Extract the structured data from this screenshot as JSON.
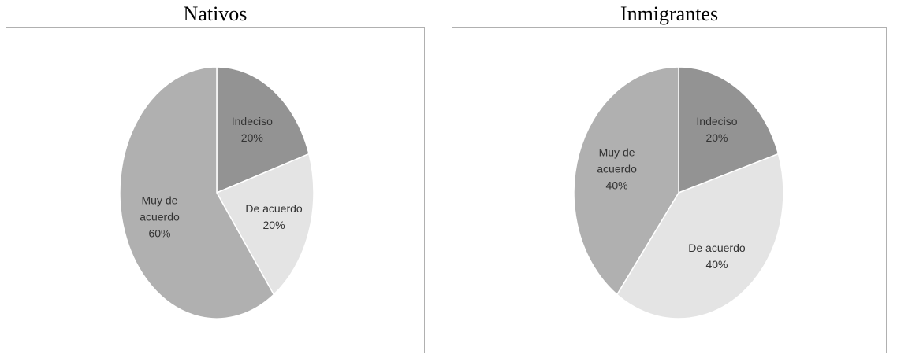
{
  "chart_data": [
    {
      "type": "pie",
      "title": "Nativos",
      "slices": [
        {
          "label": "Indeciso",
          "value": 20,
          "pct": "20%",
          "color": "#939393",
          "lines": [
            "Indeciso",
            "20%"
          ]
        },
        {
          "label": "De acuerdo",
          "value": 20,
          "pct": "20%",
          "color": "#e4e4e4",
          "lines": [
            "De acuerdo",
            "20%"
          ]
        },
        {
          "label": "Muy de acuerdo",
          "value": 60,
          "pct": "60%",
          "color": "#b0b0b0",
          "lines": [
            "Muy de",
            "acuerdo",
            "60%"
          ]
        }
      ]
    },
    {
      "type": "pie",
      "title": "Inmigrantes",
      "slices": [
        {
          "label": "Indeciso",
          "value": 20,
          "pct": "20%",
          "color": "#939393",
          "lines": [
            "Indeciso",
            "20%"
          ]
        },
        {
          "label": "De acuerdo",
          "value": 40,
          "pct": "40%",
          "color": "#e4e4e4",
          "lines": [
            "De acuerdo",
            "40%"
          ]
        },
        {
          "label": "Muy de acuerdo",
          "value": 40,
          "pct": "40%",
          "color": "#b0b0b0",
          "lines": [
            "Muy de",
            "acuerdo",
            "40%"
          ]
        }
      ]
    }
  ]
}
